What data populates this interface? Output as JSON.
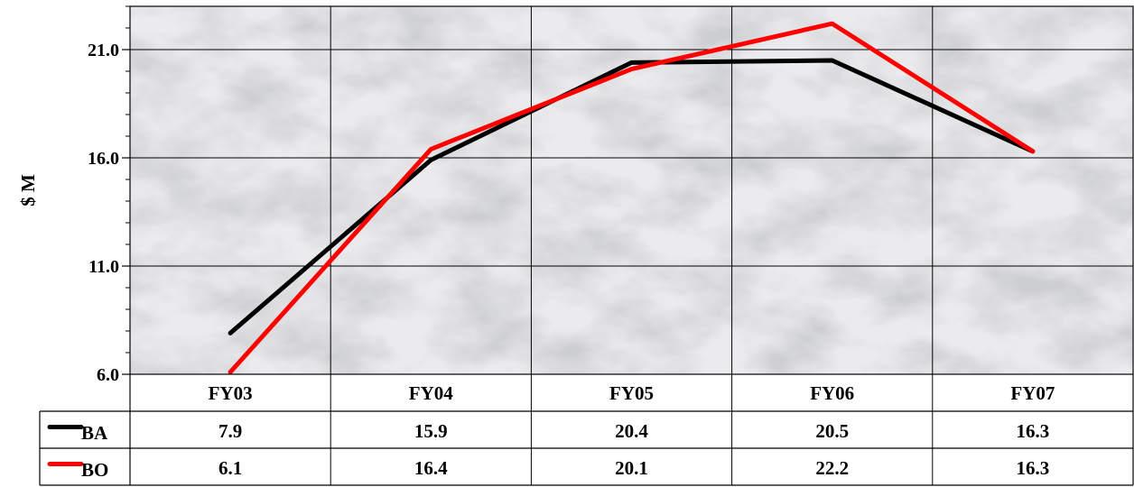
{
  "chart_data": {
    "type": "line",
    "categories": [
      "FY03",
      "FY04",
      "FY05",
      "FY06",
      "FY07"
    ],
    "series": [
      {
        "name": "BA",
        "color": "#000000",
        "values": [
          7.9,
          15.9,
          20.4,
          20.5,
          16.3
        ]
      },
      {
        "name": "BO",
        "color": "#ff0000",
        "values": [
          6.1,
          16.4,
          20.1,
          22.2,
          16.3
        ]
      }
    ],
    "y_ticks": [
      "6.0",
      "11.0",
      "16.0",
      "21.0"
    ],
    "ylabel": "$ M",
    "ylim": [
      6.0,
      23.0
    ],
    "grid": true,
    "legend": "data-table-below",
    "background": "marble-texture"
  }
}
